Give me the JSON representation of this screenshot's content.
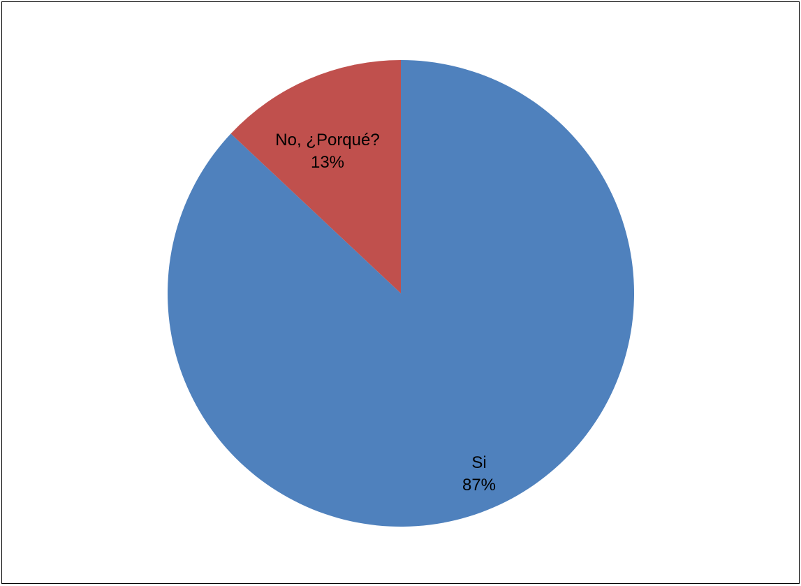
{
  "chart_data": {
    "type": "pie",
    "title": "",
    "slices": [
      {
        "label": "Si",
        "value": 87,
        "value_label": "87%",
        "color": "#4F81BD"
      },
      {
        "label": "No, ¿Porqué?",
        "value": 13,
        "value_label": "13%",
        "color": "#C0504D"
      }
    ],
    "start_angle": "12 o'clock",
    "direction": "clockwise",
    "legend": "none",
    "data_labels": "category and percentage"
  }
}
